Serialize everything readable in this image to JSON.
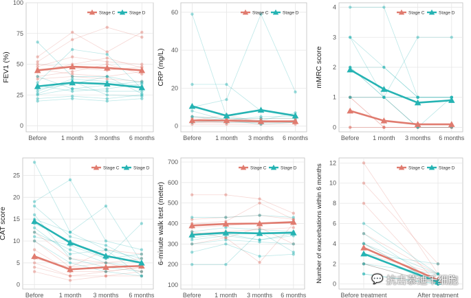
{
  "colors": {
    "stage_c": "#E07B6F",
    "stage_d": "#25B3B3",
    "grid": "#e6e6e6",
    "axis_text": "#555555",
    "panel_border": "#bfbfbf"
  },
  "watermark": {
    "icon": "wechat-icon",
    "text": "抗击慕迪千细胞"
  },
  "chart_data": [
    {
      "type": "line",
      "ylabel": "FEV1 (%)",
      "categories": [
        "Before",
        "1 month",
        "3 months",
        "6 months"
      ],
      "ylim": [
        -5,
        100
      ],
      "yticks": [
        0,
        25,
        50,
        75,
        100
      ],
      "legend": {
        "position": "top-right",
        "entries": [
          "Stage C",
          "Stage D"
        ]
      },
      "series": [
        {
          "name": "Stage C",
          "values": [
            45,
            48,
            47,
            45
          ]
        },
        {
          "name": "Stage D",
          "values": [
            32,
            35,
            34,
            31
          ]
        }
      ],
      "individual": {
        "Stage C": [
          [
            56,
            76,
            60,
            76
          ],
          [
            52,
            70,
            80,
            72
          ],
          [
            50,
            47,
            45,
            48
          ],
          [
            46,
            42,
            40,
            44
          ],
          [
            48,
            56,
            52,
            50
          ],
          [
            40,
            44,
            50,
            42
          ],
          [
            38,
            40,
            38,
            36
          ],
          [
            44,
            50,
            55,
            47
          ]
        ],
        "Stage D": [
          [
            68,
            40,
            40,
            35
          ],
          [
            35,
            62,
            58,
            30
          ],
          [
            25,
            30,
            28,
            28
          ],
          [
            22,
            24,
            22,
            25
          ],
          [
            28,
            38,
            36,
            32
          ],
          [
            33,
            28,
            30,
            34
          ],
          [
            20,
            22,
            20,
            22
          ],
          [
            40,
            30,
            33,
            36
          ],
          [
            30,
            34,
            40,
            26
          ],
          [
            26,
            36,
            25,
            24
          ]
        ]
      }
    },
    {
      "type": "line",
      "ylabel": "CRP (mg/L)",
      "categories": [
        "Before",
        "1 month",
        "3 months",
        "6 months"
      ],
      "ylim": [
        -3,
        65
      ],
      "yticks": [
        0,
        20,
        40,
        60
      ],
      "legend": {
        "position": "top-right",
        "entries": [
          "Stage C",
          "Stage D"
        ]
      },
      "series": [
        {
          "name": "Stage C",
          "values": [
            3,
            3,
            2.5,
            2.5
          ]
        },
        {
          "name": "Stage D",
          "values": [
            10.5,
            5.5,
            8.5,
            5.5
          ]
        }
      ],
      "individual": {
        "Stage C": [
          [
            5,
            4,
            3,
            3
          ],
          [
            2,
            2,
            2,
            2
          ],
          [
            3,
            6,
            2,
            3
          ],
          [
            1,
            1,
            1,
            1
          ],
          [
            4,
            3,
            4,
            4
          ],
          [
            2,
            2,
            3,
            2
          ]
        ],
        "Stage D": [
          [
            59,
            5,
            2,
            2
          ],
          [
            22,
            22,
            8,
            5
          ],
          [
            10,
            14,
            59,
            18
          ],
          [
            5,
            3,
            3,
            7
          ],
          [
            3,
            2,
            2,
            3
          ],
          [
            8,
            3,
            5,
            5
          ],
          [
            2,
            3,
            1,
            2
          ],
          [
            5,
            4,
            4,
            4
          ]
        ]
      }
    },
    {
      "type": "line",
      "ylabel": "mMRC score",
      "categories": [
        "Before",
        "1 month",
        "3 months",
        "6 months"
      ],
      "ylim": [
        -0.15,
        4.15
      ],
      "yticks": [
        0,
        1,
        2,
        3,
        4
      ],
      "legend": {
        "position": "top-right",
        "entries": [
          "Stage C",
          "Stage D"
        ]
      },
      "series": [
        {
          "name": "Stage C",
          "values": [
            0.55,
            0.22,
            0.1,
            0.1
          ]
        },
        {
          "name": "Stage D",
          "values": [
            1.92,
            1.27,
            0.82,
            0.9
          ]
        }
      ],
      "individual": {
        "Stage C": [
          [
            1,
            0,
            0,
            0
          ],
          [
            1,
            1,
            0,
            0
          ],
          [
            0,
            0,
            0,
            0
          ],
          [
            1,
            0,
            0,
            0
          ],
          [
            0,
            0,
            0,
            0
          ]
        ],
        "Stage D": [
          [
            4,
            4,
            1,
            1
          ],
          [
            3,
            2,
            1,
            1
          ],
          [
            2,
            1,
            1,
            1
          ],
          [
            2,
            1,
            0,
            0
          ],
          [
            3,
            1,
            3,
            3
          ],
          [
            1,
            1,
            1,
            1
          ],
          [
            2,
            2,
            1,
            1
          ],
          [
            1,
            1,
            0,
            1
          ]
        ]
      }
    },
    {
      "type": "line",
      "ylabel": "CAT score",
      "categories": [
        "Before",
        "1 month",
        "3 months",
        "6 months"
      ],
      "ylim": [
        -1,
        29
      ],
      "yticks": [
        0,
        5,
        10,
        15,
        20,
        25
      ],
      "legend": {
        "position": "top-left",
        "entries": [
          "Stage C",
          "Stage D"
        ]
      },
      "series": [
        {
          "name": "Stage C",
          "values": [
            6.5,
            3.5,
            4.0,
            4.3
          ]
        },
        {
          "name": "Stage D",
          "values": [
            14.5,
            9.6,
            6.6,
            5.0
          ]
        }
      ],
      "individual": {
        "Stage C": [
          [
            10,
            4,
            5,
            3
          ],
          [
            8,
            3,
            3,
            4
          ],
          [
            5,
            2,
            2,
            2
          ],
          [
            12,
            6,
            5,
            6
          ],
          [
            3,
            1,
            2,
            3
          ],
          [
            6,
            4,
            8,
            7
          ],
          [
            4,
            2,
            3,
            4
          ]
        ],
        "Stage D": [
          [
            28,
            12,
            8,
            6
          ],
          [
            19,
            24,
            10,
            8
          ],
          [
            15,
            12,
            18,
            5
          ],
          [
            14,
            10,
            6,
            14
          ],
          [
            12,
            8,
            5,
            4
          ],
          [
            16,
            6,
            4,
            3
          ],
          [
            10,
            5,
            3,
            2
          ],
          [
            18,
            11,
            9,
            5
          ],
          [
            11,
            9,
            6,
            7
          ],
          [
            13,
            7,
            8,
            2
          ]
        ]
      }
    },
    {
      "type": "line",
      "ylabel": "6-minute walk test (meter)",
      "categories": [
        "Before",
        "1 month",
        "3 months",
        "6 months"
      ],
      "ylim": [
        80,
        720
      ],
      "yticks": [
        100,
        200,
        300,
        400,
        500,
        600,
        700
      ],
      "legend": {
        "position": "top-right",
        "entries": [
          "Stage C",
          "Stage D"
        ]
      },
      "series": [
        {
          "name": "Stage C",
          "values": [
            390,
            398,
            400,
            407
          ]
        },
        {
          "name": "Stage D",
          "values": [
            345,
            355,
            352,
            355
          ]
        }
      ],
      "individual": {
        "Stage C": [
          [
            540,
            540,
            520,
            450
          ],
          [
            420,
            430,
            440,
            420
          ],
          [
            380,
            390,
            400,
            400
          ],
          [
            350,
            360,
            370,
            380
          ],
          [
            400,
            410,
            500,
            420
          ],
          [
            360,
            330,
            210,
            400
          ],
          [
            300,
            330,
            380,
            300
          ]
        ],
        "Stage D": [
          [
            430,
            430,
            440,
            430
          ],
          [
            200,
            200,
            360,
            260
          ],
          [
            360,
            380,
            370,
            360
          ],
          [
            320,
            340,
            320,
            350
          ],
          [
            390,
            400,
            400,
            410
          ],
          [
            260,
            300,
            240,
            250
          ],
          [
            330,
            350,
            320,
            340
          ],
          [
            300,
            320,
            310,
            300
          ]
        ]
      }
    },
    {
      "type": "line",
      "ylabel": "Number of exacerbations within 6 months",
      "categories": [
        "Before treatment",
        "After treatment"
      ],
      "ylim": [
        -0.5,
        12.5
      ],
      "yticks": [
        0,
        2,
        4,
        6,
        8,
        10,
        12
      ],
      "legend": {
        "position": "top-right",
        "entries": [
          "Stage C",
          "Stage D"
        ]
      },
      "series": [
        {
          "name": "Stage C",
          "values": [
            3.6,
            0.4
          ]
        },
        {
          "name": "Stage D",
          "values": [
            3.0,
            0.2
          ]
        }
      ],
      "individual": {
        "Stage C": [
          [
            12,
            1
          ],
          [
            10,
            2
          ],
          [
            8,
            0
          ],
          [
            4,
            0
          ],
          [
            3,
            1
          ],
          [
            2,
            0
          ],
          [
            2,
            0
          ],
          [
            5,
            1
          ]
        ],
        "Stage D": [
          [
            6,
            1
          ],
          [
            5,
            0
          ],
          [
            4,
            0
          ],
          [
            3,
            2
          ],
          [
            2,
            0
          ],
          [
            2,
            1
          ],
          [
            1,
            0
          ],
          [
            3,
            0
          ],
          [
            1,
            0
          ],
          [
            4,
            1
          ]
        ]
      }
    }
  ]
}
